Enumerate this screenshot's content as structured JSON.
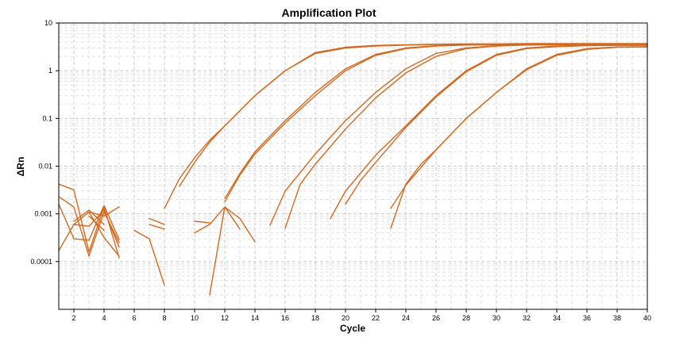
{
  "chart_data": {
    "type": "line",
    "title": "Amplification Plot",
    "xlabel": "Cycle",
    "ylabel": "ΔRn",
    "xlim": [
      1,
      40
    ],
    "ylim": [
      1e-05,
      10
    ],
    "yscale": "log",
    "grid": true,
    "legend": "none",
    "x_ticks": [
      2,
      4,
      6,
      8,
      10,
      12,
      14,
      16,
      18,
      20,
      22,
      24,
      26,
      28,
      30,
      32,
      34,
      36,
      38,
      40
    ],
    "y_ticks": [
      {
        "value": 10,
        "label": "10"
      },
      {
        "value": 1,
        "label": "1"
      },
      {
        "value": 0.1,
        "label": "0.1"
      },
      {
        "value": 0.01,
        "label": "0.01"
      },
      {
        "value": 0.001,
        "label": "0.001"
      },
      {
        "value": 0.0001,
        "label": "0.0001"
      }
    ],
    "colors": {
      "curve": "#D2691E",
      "grid": "#c8c8c8",
      "frame": "#000000"
    },
    "series": [
      {
        "segments": [
          [
            [
              1,
              0.0042
            ],
            [
              2,
              0.0032
            ],
            [
              3,
              0.00016
            ],
            [
              4,
              0.0014
            ],
            [
              5,
              0.00012
            ]
          ],
          [
            [
              7,
              0.0008
            ],
            [
              8,
              0.0006
            ]
          ],
          [
            [
              8,
              0.0013
            ],
            [
              9,
              0.0055
            ],
            [
              10,
              0.015
            ],
            [
              11,
              0.035
            ],
            [
              12,
              0.07
            ],
            [
              14,
              0.3
            ],
            [
              16,
              1.0
            ],
            [
              18,
              2.4
            ],
            [
              20,
              3.1
            ],
            [
              22,
              3.4
            ],
            [
              24,
              3.5
            ],
            [
              26,
              3.6
            ],
            [
              28,
              3.65
            ],
            [
              30,
              3.65
            ],
            [
              32,
              3.7
            ],
            [
              34,
              3.7
            ],
            [
              36,
              3.7
            ],
            [
              38,
              3.7
            ],
            [
              40,
              3.7
            ]
          ]
        ]
      },
      {
        "segments": [
          [
            [
              1,
              0.0023
            ],
            [
              2,
              0.0014
            ],
            [
              3,
              0.00013
            ],
            [
              4,
              0.0011
            ],
            [
              5,
              0.00025
            ]
          ],
          [
            [
              7,
              0.0006
            ],
            [
              8,
              0.00048
            ]
          ],
          [
            [
              9,
              0.0038
            ],
            [
              10,
              0.012
            ],
            [
              11,
              0.032
            ],
            [
              12,
              0.07
            ],
            [
              14,
              0.3
            ],
            [
              16,
              1.0
            ],
            [
              18,
              2.3
            ],
            [
              20,
              3.0
            ],
            [
              22,
              3.3
            ],
            [
              24,
              3.45
            ],
            [
              26,
              3.55
            ],
            [
              28,
              3.6
            ],
            [
              30,
              3.6
            ],
            [
              32,
              3.65
            ],
            [
              34,
              3.65
            ],
            [
              36,
              3.65
            ],
            [
              38,
              3.65
            ],
            [
              40,
              3.65
            ]
          ]
        ]
      },
      {
        "segments": [
          [
            [
              1,
              0.0016
            ],
            [
              2,
              0.0003
            ],
            [
              3,
              0.00028
            ],
            [
              4,
              0.0015
            ],
            [
              5,
              0.00029
            ]
          ],
          [
            [
              10,
              0.0004
            ],
            [
              11,
              0.0006
            ],
            [
              12,
              0.0014
            ],
            [
              13,
              0.00048
            ]
          ],
          [
            [
              12,
              0.0021
            ],
            [
              13,
              0.007
            ],
            [
              14,
              0.02
            ],
            [
              16,
              0.09
            ],
            [
              18,
              0.35
            ],
            [
              20,
              1.1
            ],
            [
              22,
              2.2
            ],
            [
              24,
              3.0
            ],
            [
              26,
              3.35
            ],
            [
              28,
              3.5
            ],
            [
              30,
              3.55
            ],
            [
              32,
              3.6
            ],
            [
              34,
              3.6
            ],
            [
              36,
              3.6
            ],
            [
              38,
              3.6
            ],
            [
              40,
              3.6
            ]
          ]
        ]
      },
      {
        "segments": [
          [
            [
              1,
              0.00017
            ],
            [
              2,
              0.0006
            ],
            [
              3,
              0.0011
            ],
            [
              4,
              0.0009
            ],
            [
              5,
              0.0014
            ]
          ],
          [
            [
              11,
              2e-05
            ],
            [
              12,
              0.0014
            ],
            [
              13,
              0.0008
            ],
            [
              14,
              0.00026
            ]
          ],
          [
            [
              12,
              0.0018
            ],
            [
              13,
              0.0065
            ],
            [
              14,
              0.018
            ],
            [
              16,
              0.08
            ],
            [
              18,
              0.3
            ],
            [
              20,
              1.0
            ],
            [
              22,
              2.1
            ],
            [
              24,
              2.9
            ],
            [
              26,
              3.3
            ],
            [
              28,
              3.45
            ],
            [
              30,
              3.5
            ],
            [
              32,
              3.55
            ],
            [
              34,
              3.55
            ],
            [
              36,
              3.55
            ],
            [
              38,
              3.55
            ],
            [
              40,
              3.55
            ]
          ]
        ]
      },
      {
        "segments": [
          [
            [
              2,
              0.0006
            ],
            [
              3,
              0.00055
            ],
            [
              4,
              0.0012
            ],
            [
              5,
              0.0002
            ]
          ],
          [
            [
              10,
              0.0007
            ],
            [
              11,
              0.00065
            ]
          ],
          [
            [
              15,
              0.00058
            ],
            [
              16,
              0.003
            ],
            [
              18,
              0.018
            ],
            [
              20,
              0.09
            ],
            [
              22,
              0.35
            ],
            [
              24,
              1.1
            ],
            [
              26,
              2.3
            ],
            [
              28,
              3.0
            ],
            [
              30,
              3.35
            ],
            [
              32,
              3.5
            ],
            [
              34,
              3.55
            ],
            [
              36,
              3.6
            ],
            [
              38,
              3.6
            ],
            [
              40,
              3.6
            ]
          ]
        ]
      },
      {
        "segments": [
          [
            [
              3,
              0.0011
            ],
            [
              4,
              0.00032
            ],
            [
              5,
              0.00013
            ]
          ],
          [
            [
              6,
              0.00045
            ],
            [
              7,
              0.0003
            ],
            [
              8,
              3.2e-05
            ]
          ],
          [
            [
              16,
              0.0005
            ],
            [
              17,
              0.0042
            ],
            [
              18,
              0.011
            ],
            [
              20,
              0.06
            ],
            [
              22,
              0.27
            ],
            [
              24,
              0.9
            ],
            [
              26,
              2.0
            ],
            [
              28,
              2.9
            ],
            [
              30,
              3.3
            ],
            [
              32,
              3.45
            ],
            [
              34,
              3.5
            ],
            [
              36,
              3.55
            ],
            [
              38,
              3.55
            ],
            [
              40,
              3.55
            ]
          ]
        ]
      },
      {
        "segments": [
          [
            [
              2,
              0.0007
            ],
            [
              3,
              0.0012
            ],
            [
              4,
              0.0006
            ]
          ],
          [
            [
              19,
              0.0008
            ],
            [
              20,
              0.003
            ],
            [
              22,
              0.017
            ],
            [
              24,
              0.07
            ],
            [
              26,
              0.3
            ],
            [
              28,
              1.0
            ],
            [
              30,
              2.2
            ],
            [
              32,
              3.0
            ],
            [
              34,
              3.3
            ],
            [
              36,
              3.4
            ],
            [
              38,
              3.45
            ],
            [
              40,
              3.45
            ]
          ]
        ]
      },
      {
        "segments": [
          [
            [
              3,
              0.0009
            ],
            [
              4,
              0.00045
            ]
          ],
          [
            [
              20,
              0.0016
            ],
            [
              21,
              0.005
            ],
            [
              22,
              0.012
            ],
            [
              24,
              0.065
            ],
            [
              26,
              0.28
            ],
            [
              28,
              0.95
            ],
            [
              30,
              2.1
            ],
            [
              32,
              2.9
            ],
            [
              34,
              3.2
            ],
            [
              36,
              3.35
            ],
            [
              38,
              3.4
            ],
            [
              40,
              3.4
            ]
          ]
        ]
      },
      {
        "segments": [
          [
            [
              23,
              0.0013
            ],
            [
              24,
              0.004
            ],
            [
              26,
              0.022
            ],
            [
              28,
              0.1
            ],
            [
              30,
              0.35
            ],
            [
              32,
              1.1
            ],
            [
              34,
              2.2
            ],
            [
              36,
              2.9
            ],
            [
              38,
              3.15
            ],
            [
              40,
              3.2
            ]
          ]
        ]
      },
      {
        "segments": [
          [
            [
              23,
              0.0005
            ],
            [
              24,
              0.0042
            ],
            [
              25,
              0.011
            ],
            [
              26,
              0.022
            ],
            [
              28,
              0.1
            ],
            [
              30,
              0.35
            ],
            [
              32,
              1.05
            ],
            [
              34,
              2.1
            ],
            [
              36,
              2.8
            ],
            [
              38,
              3.1
            ],
            [
              40,
              3.15
            ]
          ]
        ]
      }
    ]
  }
}
